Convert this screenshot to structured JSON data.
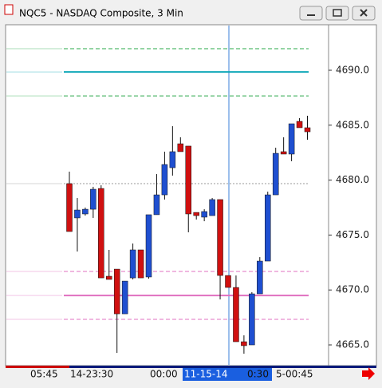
{
  "chart_data": {
    "type": "candlestick",
    "title": "NQC5 - NASDAQ Composite, 3 Min",
    "open": [
      4679.68,
      4676.56,
      4676.92,
      4677.35,
      4679.24,
      4671.25,
      4671.9,
      4667.83,
      4671.1,
      4673.65,
      4671.18,
      4676.85,
      4678.66,
      4681.13,
      4683.31,
      4683.1,
      4677.06,
      4676.63,
      4676.77,
      4678.23,
      4671.32,
      4670.23,
      4665.29,
      4665.0,
      4669.65,
      4672.63,
      4678.66,
      4682.59,
      4682.37,
      4685.35,
      4684.77
    ],
    "high": [
      4680.77,
      4678.37,
      4677.5,
      4679.39,
      4679.53,
      4673.65,
      4671.9,
      4670.81,
      4674.23,
      4673.65,
      4676.85,
      4680.55,
      4682.59,
      4684.91,
      4683.9,
      4683.1,
      4677.06,
      4677.35,
      4678.37,
      4678.23,
      4671.32,
      4671.32,
      4665.87,
      4669.8,
      4672.99,
      4678.95,
      4682.95,
      4683.9,
      4685.13,
      4685.64,
      4685.86
    ],
    "low": [
      4675.32,
      4673.5,
      4676.77,
      4676.56,
      4671.1,
      4670.96,
      4664.27,
      4667.83,
      4670.96,
      4671.1,
      4671.03,
      4676.85,
      4678.23,
      4680.41,
      4682.59,
      4675.25,
      4676.41,
      4676.26,
      4676.77,
      4669.14,
      4670.23,
      4665.29,
      4664.2,
      4665.0,
      4669.65,
      4672.63,
      4678.66,
      4682.37,
      4681.72,
      4684.77,
      4683.68
    ],
    "close": [
      4675.32,
      4677.28,
      4677.35,
      4679.17,
      4671.1,
      4670.96,
      4667.83,
      4670.81,
      4673.65,
      4671.1,
      4676.85,
      4678.66,
      4681.42,
      4682.59,
      4682.59,
      4676.92,
      4676.77,
      4677.14,
      4678.23,
      4671.32,
      4670.23,
      4665.29,
      4664.93,
      4669.65,
      4672.63,
      4678.66,
      4682.44,
      4682.37,
      4685.13,
      4684.77,
      4684.4
    ],
    "up_color": "#1f4fd0",
    "down_color": "#d01010",
    "levels": [
      {
        "value": 4691.96,
        "color": "#2aa84a",
        "style": "dashed"
      },
      {
        "value": 4689.85,
        "color": "#10a8b8",
        "style": "solid"
      },
      {
        "value": 4687.67,
        "color": "#2aa84a",
        "style": "dashed"
      },
      {
        "value": 4679.68,
        "color": "#999999",
        "style": "dotted"
      },
      {
        "value": 4671.69,
        "color": "#e070c0",
        "style": "dashed"
      },
      {
        "value": 4669.5,
        "color": "#e070c0",
        "style": "solid"
      },
      {
        "value": 4667.33,
        "color": "#e070c0",
        "style": "dashed"
      }
    ],
    "ylim": [
      4663.33,
      4694.07
    ],
    "yticks": [
      {
        "value": 4665,
        "label": "4665.0"
      },
      {
        "value": 4670,
        "label": "4670.0"
      },
      {
        "value": 4675,
        "label": "4675.0"
      },
      {
        "value": 4680,
        "label": "4680.0"
      },
      {
        "value": 4685,
        "label": "4685.0"
      },
      {
        "value": 4690,
        "label": "4690.0"
      }
    ],
    "x_labels": [
      "05:45",
      "14-23:30",
      "00:00",
      "11-15-14",
      "0:30",
      "5-00:45"
    ]
  }
}
